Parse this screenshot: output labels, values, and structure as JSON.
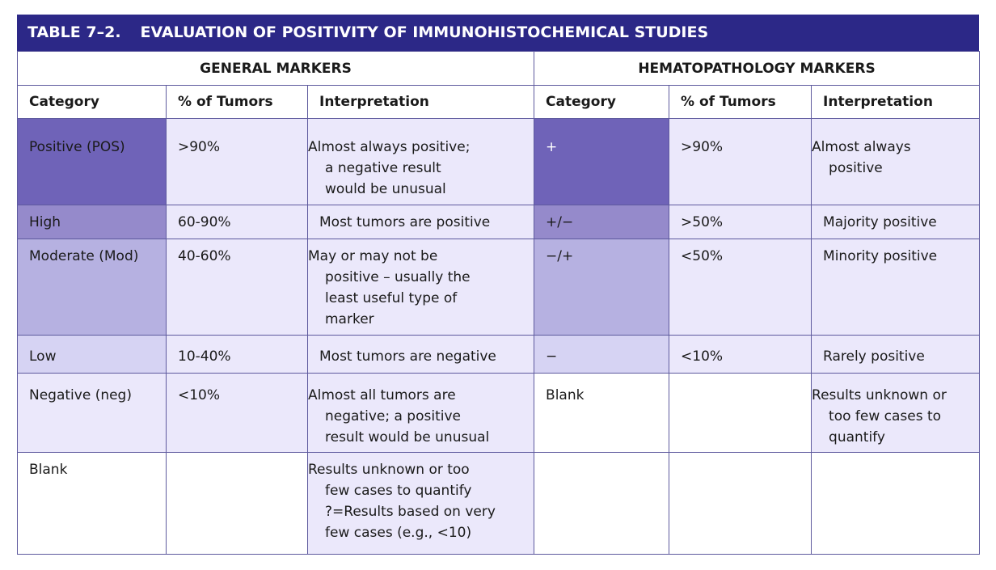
{
  "table": {
    "number": "TABLE 7–2.",
    "title": "EVALUATION OF POSITIVITY OF IMMUNOHISTOCHEMICAL STUDIES",
    "groups": {
      "general": "GENERAL MARKERS",
      "hemato": "HEMATOPATHOLOGY MARKERS"
    },
    "headers": [
      "Category",
      "% of Tumors",
      "Interpretation",
      "Category",
      "% of Tumors",
      "Interpretation"
    ],
    "rows": [
      {
        "g_category": "Positive (POS)",
        "g_percent": ">90%",
        "g_interp": [
          "Almost always positive;",
          "a negative result",
          "would be unusual"
        ],
        "h_category": "+",
        "h_percent": ">90%",
        "h_interp": [
          "Almost always",
          "positive"
        ]
      },
      {
        "g_category": "High",
        "g_percent": "60-90%",
        "g_interp": [
          "Most tumors are positive"
        ],
        "h_category": "+/−",
        "h_percent": ">50%",
        "h_interp": [
          "Majority positive"
        ]
      },
      {
        "g_category": "Moderate (Mod)",
        "g_percent": "40-60%",
        "g_interp": [
          "May or may not be",
          "positive – usually the",
          "least useful type of",
          "marker"
        ],
        "h_category": "−/+",
        "h_percent": "<50%",
        "h_interp": [
          "Minority positive"
        ]
      },
      {
        "g_category": "Low",
        "g_percent": "10-40%",
        "g_interp": [
          "Most tumors are negative"
        ],
        "h_category": "−",
        "h_percent": "<10%",
        "h_interp": [
          "Rarely positive"
        ]
      },
      {
        "g_category": "Negative (neg)",
        "g_percent": "<10%",
        "g_interp": [
          "Almost all tumors are",
          "negative; a positive",
          "result would be unusual"
        ],
        "h_category": "Blank",
        "h_percent": "",
        "h_interp": [
          "Results unknown or",
          "too few cases to",
          "quantify"
        ]
      },
      {
        "g_category": "Blank",
        "g_percent": "",
        "g_interp": [
          "Results unknown or too",
          "few cases to quantify",
          "?=Results based on very",
          "few cases (e.g., <10)"
        ],
        "h_category": "",
        "h_percent": "",
        "h_interp": []
      }
    ],
    "colors": {
      "title_bar": "#2c2887",
      "positive": "#6f63b8",
      "high": "#958acb",
      "moderate": "#b6b1e1",
      "low": "#d6d3f3",
      "light_fill": "#ebe8fb",
      "border": "#5e5a9e"
    }
  }
}
